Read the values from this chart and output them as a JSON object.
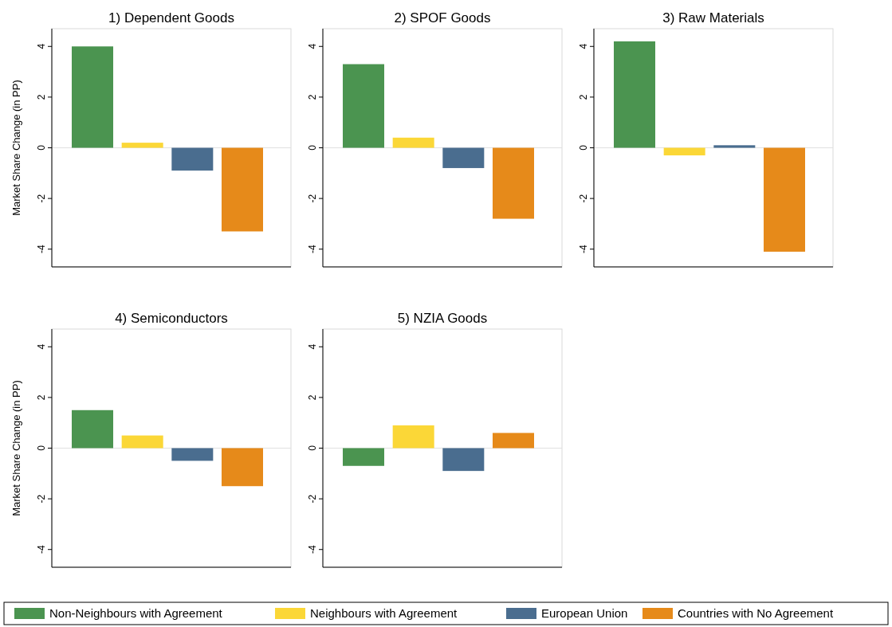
{
  "chart_data": [
    {
      "type": "bar",
      "title": "1) Dependent Goods",
      "ylabel": "Market Share Change (in PP)",
      "categories": [
        null
      ],
      "ylim": [
        -4.7,
        4.7
      ],
      "yticks": [
        -4,
        -2,
        0,
        2,
        4
      ],
      "tick_labels": "y",
      "legend": "bottom",
      "ref_lines": [
        {
          "axis": "y",
          "value": 0,
          "color": "#e0e0e0"
        }
      ],
      "series": [
        {
          "name": "Non-Neighbours with Agreement",
          "color": "#4b9450",
          "values": [
            4.0
          ]
        },
        {
          "name": "Neighbours with Agreement",
          "color": "#fbd737",
          "values": [
            0.2
          ]
        },
        {
          "name": "European Union",
          "color": "#4a6d8f",
          "values": [
            -0.9
          ]
        },
        {
          "name": "Countries with No Agreement",
          "color": "#e68a1a",
          "values": [
            -3.3
          ]
        }
      ]
    },
    {
      "type": "bar",
      "title": "2) SPOF Goods",
      "categories": [
        null
      ],
      "ylim": [
        -4.7,
        4.7
      ],
      "yticks": [
        -4,
        -2,
        0,
        2,
        4
      ],
      "tick_labels": "y",
      "ref_lines": [
        {
          "axis": "y",
          "value": 0,
          "color": "#e0e0e0"
        }
      ],
      "series": [
        {
          "color": "#4b9450",
          "values": [
            3.3
          ]
        },
        {
          "color": "#fbd737",
          "values": [
            0.4
          ]
        },
        {
          "color": "#4a6d8f",
          "values": [
            -0.8
          ]
        },
        {
          "color": "#e68a1a",
          "values": [
            -2.8
          ]
        }
      ]
    },
    {
      "type": "bar",
      "title": "3) Raw Materials",
      "categories": [
        null
      ],
      "ylim": [
        -4.7,
        4.7
      ],
      "yticks": [
        -4,
        -2,
        0,
        2,
        4
      ],
      "tick_labels": "y",
      "ref_lines": [
        {
          "axis": "y",
          "value": 0,
          "color": "#e0e0e0"
        }
      ],
      "series": [
        {
          "color": "#4b9450",
          "values": [
            4.2
          ]
        },
        {
          "color": "#fbd737",
          "values": [
            -0.3
          ]
        },
        {
          "color": "#4a6d8f",
          "values": [
            0.1
          ]
        },
        {
          "color": "#e68a1a",
          "values": [
            -4.1
          ]
        }
      ]
    },
    {
      "type": "bar",
      "title": "4) Semiconductors",
      "ylabel": "Market Share Change (in PP)",
      "categories": [
        null
      ],
      "ylim": [
        -4.7,
        4.7
      ],
      "yticks": [
        -4,
        -2,
        0,
        2,
        4
      ],
      "tick_labels": "y",
      "ref_lines": [
        {
          "axis": "y",
          "value": 0,
          "color": "#e0e0e0"
        }
      ],
      "series": [
        {
          "color": "#4b9450",
          "values": [
            1.5
          ]
        },
        {
          "color": "#fbd737",
          "values": [
            0.5
          ]
        },
        {
          "color": "#4a6d8f",
          "values": [
            -0.5
          ]
        },
        {
          "color": "#e68a1a",
          "values": [
            -1.5
          ]
        }
      ]
    },
    {
      "type": "bar",
      "title": "5) NZIA Goods",
      "categories": [
        null
      ],
      "ylim": [
        -4.7,
        4.7
      ],
      "yticks": [
        -4,
        -2,
        0,
        2,
        4
      ],
      "tick_labels": "y",
      "ref_lines": [
        {
          "axis": "y",
          "value": 0,
          "color": "#e0e0e0"
        }
      ],
      "series": [
        {
          "color": "#4b9450",
          "values": [
            -0.7
          ]
        },
        {
          "color": "#fbd737",
          "values": [
            0.9
          ]
        },
        {
          "color": "#4a6d8f",
          "values": [
            -0.9
          ]
        },
        {
          "color": "#e68a1a",
          "values": [
            0.6
          ]
        }
      ]
    }
  ]
}
